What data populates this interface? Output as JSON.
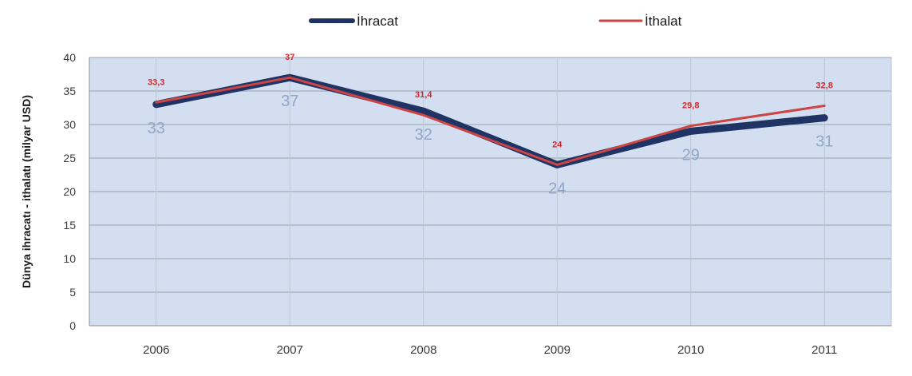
{
  "chart_data": {
    "type": "line",
    "title": "",
    "xlabel": "",
    "ylabel": "Dünya ihracatı - ithalatı (milyar USD)",
    "categories": [
      "2006",
      "2007",
      "2008",
      "2009",
      "2010",
      "2011"
    ],
    "ylim": [
      0,
      40
    ],
    "yticks": [
      0,
      5,
      10,
      15,
      20,
      25,
      30,
      35,
      40
    ],
    "grid": true,
    "legend_position": "top",
    "series": [
      {
        "name": "İhracat",
        "color": "#1f3464",
        "label_color": "#8fa6c8",
        "values": [
          33,
          37,
          32,
          24,
          29,
          31
        ],
        "labels": [
          "33",
          "37",
          "32",
          "24",
          "29",
          "31"
        ]
      },
      {
        "name": "İthalat",
        "color": "#cc4444",
        "label_color": "#d9262b",
        "values": [
          33.3,
          37,
          31.4,
          24,
          29.8,
          32.8
        ],
        "labels": [
          "33,3",
          "37",
          "31,4",
          "24",
          "29,8",
          "32,8"
        ]
      }
    ]
  }
}
